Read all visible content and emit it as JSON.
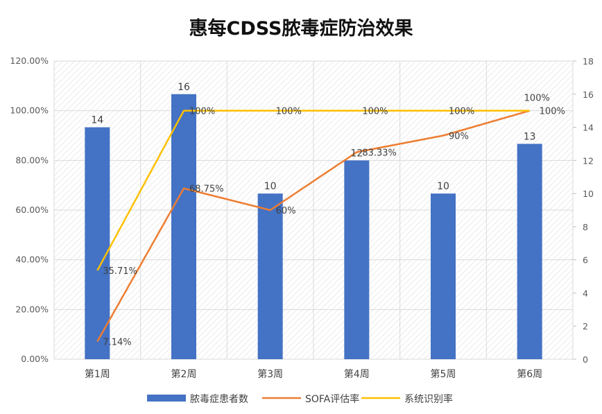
{
  "chart_data": {
    "type": "bar",
    "title": "惠每CDSS脓毒症防治效果",
    "categories": [
      "第1周",
      "第2周",
      "第3周",
      "第4周",
      "第5周",
      "第6周"
    ],
    "bar_series": {
      "name": "脓毒症患者数",
      "axis": "right",
      "values": [
        14,
        16,
        10,
        12,
        10,
        13
      ],
      "labels": [
        "14",
        "16",
        "10",
        "12",
        "10",
        "13"
      ],
      "color": "#4472c4"
    },
    "line_series": [
      {
        "name": "SOFA评估率",
        "axis": "left",
        "values": [
          7.14,
          68.75,
          60,
          83.33,
          90,
          100
        ],
        "labels": [
          "7.14%",
          "68.75%",
          "60%",
          "83.33%",
          "90%",
          "100%"
        ],
        "color": "#ed7d31"
      },
      {
        "name": "系统识别率",
        "axis": "left",
        "values": [
          35.71,
          100,
          100,
          100,
          100,
          100
        ],
        "labels": [
          "35.71%",
          "100%",
          "100%",
          "100%",
          "100%",
          "100%"
        ],
        "color": "#ffc000"
      }
    ],
    "y_left": {
      "min": 0,
      "max": 120,
      "ticks": [
        "0.00%",
        "20.00%",
        "40.00%",
        "60.00%",
        "80.00%",
        "100.00%",
        "120.00%"
      ]
    },
    "y_right": {
      "min": 0,
      "max": 18,
      "ticks": [
        "0",
        "2",
        "4",
        "6",
        "8",
        "10",
        "12",
        "14",
        "16",
        "18"
      ]
    },
    "grid": true,
    "legend_position": "bottom"
  }
}
